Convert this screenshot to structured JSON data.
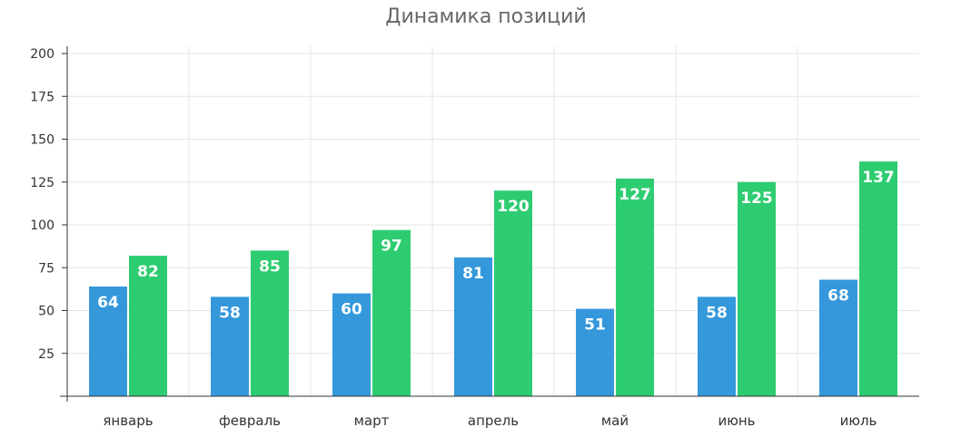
{
  "chart_data": {
    "type": "bar",
    "title": "Динамика позиций",
    "categories": [
      "январь",
      "февраль",
      "март",
      "апрель",
      "май",
      "июнь",
      "июль"
    ],
    "series": [
      {
        "color": "#3498db",
        "values": [
          64,
          58,
          60,
          81,
          51,
          58,
          68
        ]
      },
      {
        "color": "#2ecc71",
        "values": [
          82,
          85,
          97,
          120,
          127,
          125,
          137
        ]
      }
    ],
    "ylim": [
      0,
      200
    ],
    "yticks": [
      25,
      50,
      75,
      100,
      125,
      150,
      175,
      200
    ],
    "grid": true,
    "show_data_labels": true
  }
}
